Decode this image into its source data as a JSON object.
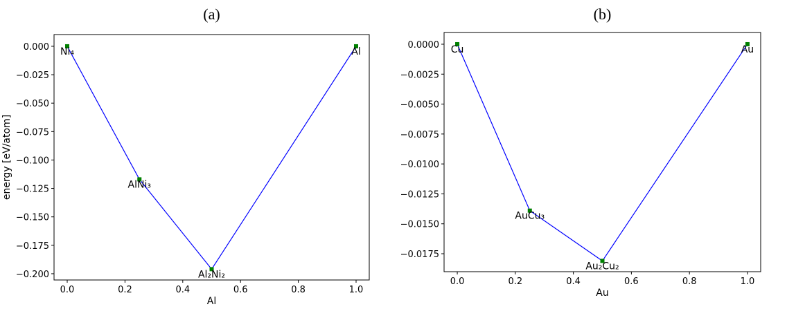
{
  "chart_data": [
    {
      "type": "line",
      "title": "(a)",
      "xlabel": "Al",
      "ylabel": "energy [eV/atom]",
      "x": [
        0,
        0.25,
        0.5,
        1
      ],
      "values": [
        0,
        -0.117,
        -0.196,
        0
      ],
      "point_labels": [
        "Ni₄",
        "AlNi₃",
        "Al₂Ni₂",
        "Al"
      ],
      "line_color": "#0000ff",
      "marker_color": "#008000",
      "xlim": [
        -0.0456,
        1.0456
      ],
      "ylim": [
        -0.2055,
        0.0103
      ],
      "xticks": [
        {
          "value": 0,
          "label": "0.0"
        },
        {
          "value": 0.2,
          "label": "0.2"
        },
        {
          "value": 0.4,
          "label": "0.4"
        },
        {
          "value": 0.6,
          "label": "0.6"
        },
        {
          "value": 0.8,
          "label": "0.8"
        },
        {
          "value": 1,
          "label": "1.0"
        }
      ],
      "yticks": [
        {
          "value": 0,
          "label": "0.000"
        },
        {
          "value": -0.025,
          "label": "−0.025"
        },
        {
          "value": -0.05,
          "label": "−0.050"
        },
        {
          "value": -0.075,
          "label": "−0.075"
        },
        {
          "value": -0.1,
          "label": "−0.100"
        },
        {
          "value": -0.125,
          "label": "−0.125"
        },
        {
          "value": -0.15,
          "label": "−0.150"
        },
        {
          "value": -0.175,
          "label": "−0.175"
        },
        {
          "value": -0.2,
          "label": "−0.200"
        }
      ]
    },
    {
      "type": "line",
      "title": "(b)",
      "xlabel": "Au",
      "x": [
        0,
        0.25,
        0.5,
        1
      ],
      "values": [
        0,
        -0.0139,
        -0.0181,
        0
      ],
      "point_labels": [
        "Cu",
        "AuCu₃",
        "Au₂Cu₂",
        "Au"
      ],
      "line_color": "#0000ff",
      "marker_color": "#008000",
      "xlim": [
        -0.0455,
        1.0455
      ],
      "ylim": [
        -0.019,
        0.00098
      ],
      "xticks": [
        {
          "value": 0,
          "label": "0.0"
        },
        {
          "value": 0.2,
          "label": "0.2"
        },
        {
          "value": 0.4,
          "label": "0.4"
        },
        {
          "value": 0.6,
          "label": "0.6"
        },
        {
          "value": 0.8,
          "label": "0.8"
        },
        {
          "value": 1,
          "label": "1.0"
        }
      ],
      "yticks": [
        {
          "value": 0,
          "label": "0.0000"
        },
        {
          "value": -0.0025,
          "label": "−0.0025"
        },
        {
          "value": -0.005,
          "label": "−0.0050"
        },
        {
          "value": -0.0075,
          "label": "−0.0075"
        },
        {
          "value": -0.01,
          "label": "−0.0100"
        },
        {
          "value": -0.0125,
          "label": "−0.0125"
        },
        {
          "value": -0.015,
          "label": "−0.0150"
        },
        {
          "value": -0.0175,
          "label": "−0.0175"
        }
      ]
    }
  ]
}
